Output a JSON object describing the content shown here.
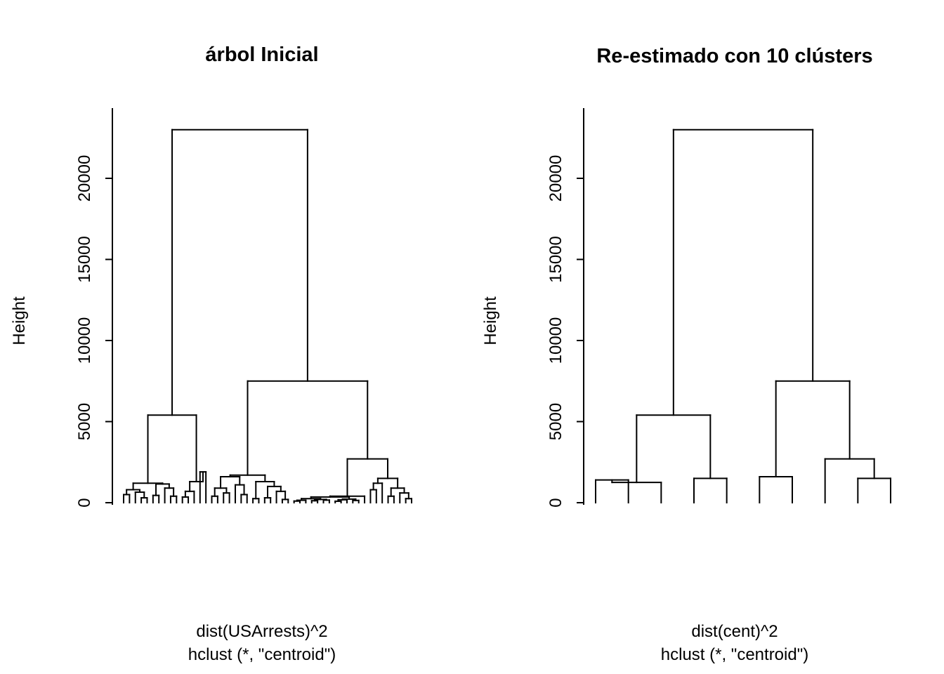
{
  "colors": {
    "foreground": "#000000",
    "background": "#ffffff"
  },
  "chart_data": [
    {
      "type": "dendrogram",
      "title": "árbol Inicial",
      "ylabel": "Height",
      "xlabel_lines": [
        "dist(USArrests)^2",
        "hclust (*, \"centroid\")"
      ],
      "yticks": [
        0,
        5000,
        10000,
        15000,
        20000
      ],
      "ylim": [
        0,
        23500
      ],
      "n_leaves": 50,
      "legend": "none",
      "grid": false,
      "merges": [
        23000,
        [
          5400,
          [
            1200,
            [
              800,
              [
                500,
                0,
                0
              ],
              [
                650,
                0,
                [
                  300,
                  0,
                  0
                ]
              ]
            ],
            [
              1150,
              [
                450,
                0,
                0
              ],
              [
                900,
                0,
                [
                  400,
                  0,
                  0
                ]
              ]
            ]
          ],
          [
            1300,
            [
              700,
              [
                350,
                0,
                0
              ],
              0
            ],
            [
              1900,
              0,
              0
            ]
          ]
        ],
        [
          7500,
          [
            1700,
            [
              1600,
              [
                900,
                [
                  400,
                  0,
                  0
                ],
                [
                  600,
                  0,
                  0
                ]
              ],
              [
                1100,
                0,
                [
                  500,
                  0,
                  0
                ]
              ]
            ],
            [
              1300,
              [
                250,
                0,
                0
              ],
              [
                1000,
                [
                  300,
                  0,
                  0
                ],
                [
                  700,
                  0,
                  [
                    200,
                    0,
                    0
                  ]
                ]
              ]
            ]
          ],
          [
            2700,
            [
              400,
              [
                350,
                [
                  250,
                  [
                    150,
                    [
                      100,
                      0,
                      0
                    ],
                    0
                  ],
                  [
                    200,
                    [
                      120,
                      0,
                      0
                    ],
                    [
                      160,
                      0,
                      0
                    ]
                  ]
                ],
                [
                  220,
                  [
                    180,
                    [
                      90,
                      0,
                      0
                    ],
                    0
                  ],
                  [
                    140,
                    0,
                    0
                  ]
                ]
              ],
              0
            ],
            [
              1500,
              [
                1200,
                [
                  800,
                  0,
                  0
                ],
                0
              ],
              [
                900,
                [
                  400,
                  0,
                  0
                ],
                [
                  600,
                  0,
                  [
                    250,
                    0,
                    0
                  ]
                ]
              ]
            ]
          ]
        ]
      ]
    },
    {
      "type": "dendrogram",
      "title": "Re-estimado con 10 clústers",
      "ylabel": "Height",
      "xlabel_lines": [
        "dist(cent)^2",
        "hclust (*, \"centroid\")"
      ],
      "yticks": [
        0,
        5000,
        10000,
        15000,
        20000
      ],
      "ylim": [
        0,
        23500
      ],
      "n_leaves": 10,
      "legend": "none",
      "grid": false,
      "merges": [
        23000,
        [
          5400,
          [
            1250,
            [
              1400,
              0,
              0
            ],
            0
          ],
          [
            1500,
            0,
            0
          ]
        ],
        [
          7500,
          [
            1600,
            0,
            0
          ],
          [
            2700,
            0,
            [
              1500,
              0,
              0
            ]
          ]
        ]
      ]
    }
  ]
}
